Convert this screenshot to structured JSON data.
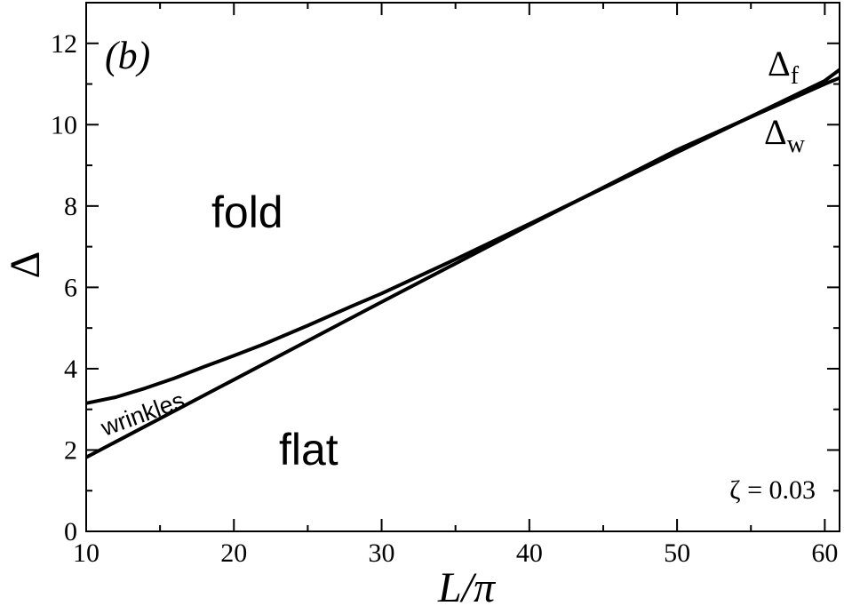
{
  "chart_data": {
    "type": "line",
    "panel_label": "(b)",
    "xlabel": "L/π",
    "ylabel": "Δ",
    "xlim": [
      10,
      61
    ],
    "ylim": [
      0,
      13
    ],
    "xticks": [
      10,
      20,
      30,
      40,
      50,
      60
    ],
    "yticks": [
      0,
      2,
      4,
      6,
      8,
      10,
      12
    ],
    "x_minor_step": 5,
    "y_minor_step": 1,
    "grid": false,
    "colors": {
      "line": "#000000",
      "frame": "#000000",
      "background": "#ffffff"
    },
    "series": [
      {
        "name": "Δf",
        "label_main": "Δ",
        "label_sub": "f",
        "x": [
          10,
          12,
          14,
          16,
          18,
          20,
          22,
          25,
          28,
          30,
          35,
          40,
          45,
          50,
          55,
          60,
          61
        ],
        "y": [
          3.15,
          3.3,
          3.52,
          3.77,
          4.05,
          4.32,
          4.6,
          5.06,
          5.54,
          5.85,
          6.69,
          7.56,
          8.44,
          9.32,
          10.2,
          11.08,
          11.35
        ]
      },
      {
        "name": "Δw",
        "label_main": "Δ",
        "label_sub": "w",
        "x": [
          10,
          20,
          30,
          40,
          50,
          60,
          61
        ],
        "y": [
          1.82,
          3.73,
          5.64,
          7.53,
          9.38,
          11.0,
          11.15
        ]
      }
    ],
    "region_labels": [
      "fold",
      "flat",
      "wrinkles"
    ],
    "annotation": "ζ = 0.03"
  }
}
